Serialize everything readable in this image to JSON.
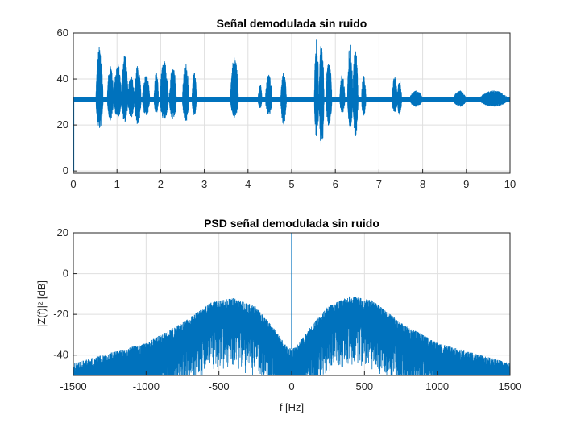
{
  "chart_data": [
    {
      "type": "line",
      "title": "Señal demodulada sin ruido",
      "xlabel": "",
      "ylabel": "",
      "xlim": [
        0,
        10
      ],
      "ylim": [
        -1,
        60
      ],
      "xticks": [
        0,
        1,
        2,
        3,
        4,
        5,
        6,
        7,
        8,
        9,
        10
      ],
      "yticks": [
        0,
        20,
        40,
        60
      ],
      "grid": true,
      "color": "#0072BD",
      "baseline": 31,
      "start_value": 0,
      "bursts": [
        {
          "t0": 0.52,
          "t1": 0.68,
          "max": 54.5,
          "min": 18
        },
        {
          "t0": 0.78,
          "t1": 0.92,
          "max": 47,
          "min": 22
        },
        {
          "t0": 0.93,
          "t1": 1.1,
          "max": 47,
          "min": 23
        },
        {
          "t0": 1.1,
          "t1": 1.25,
          "max": 52,
          "min": 21
        },
        {
          "t0": 1.25,
          "t1": 1.4,
          "max": 42,
          "min": 23
        },
        {
          "t0": 1.4,
          "t1": 1.55,
          "max": 46,
          "min": 20
        },
        {
          "t0": 1.58,
          "t1": 1.75,
          "max": 42,
          "min": 24
        },
        {
          "t0": 1.85,
          "t1": 1.95,
          "max": 43,
          "min": 25
        },
        {
          "t0": 1.98,
          "t1": 2.18,
          "max": 48,
          "min": 22
        },
        {
          "t0": 2.2,
          "t1": 2.36,
          "max": 46,
          "min": 22
        },
        {
          "t0": 2.5,
          "t1": 2.65,
          "max": 47,
          "min": 21
        },
        {
          "t0": 2.72,
          "t1": 2.82,
          "max": 43,
          "min": 24
        },
        {
          "t0": 3.6,
          "t1": 3.78,
          "max": 50,
          "min": 23
        },
        {
          "t0": 4.23,
          "t1": 4.32,
          "max": 38,
          "min": 27
        },
        {
          "t0": 4.4,
          "t1": 4.55,
          "max": 42,
          "min": 24
        },
        {
          "t0": 4.75,
          "t1": 4.88,
          "max": 43,
          "min": 20
        },
        {
          "t0": 5.52,
          "t1": 5.62,
          "max": 58,
          "min": 14
        },
        {
          "t0": 5.63,
          "t1": 5.74,
          "max": 57,
          "min": 9
        },
        {
          "t0": 5.78,
          "t1": 5.92,
          "max": 48,
          "min": 19
        },
        {
          "t0": 6.1,
          "t1": 6.22,
          "max": 42,
          "min": 25
        },
        {
          "t0": 6.28,
          "t1": 6.4,
          "max": 56,
          "min": 18
        },
        {
          "t0": 6.4,
          "t1": 6.52,
          "max": 54,
          "min": 15
        },
        {
          "t0": 6.6,
          "t1": 6.7,
          "max": 42,
          "min": 24
        },
        {
          "t0": 7.3,
          "t1": 7.42,
          "max": 41,
          "min": 25
        },
        {
          "t0": 7.42,
          "t1": 7.52,
          "max": 40,
          "min": 24
        },
        {
          "t0": 7.7,
          "t1": 8.0,
          "max": 35,
          "min": 28
        },
        {
          "t0": 8.7,
          "t1": 9.0,
          "max": 35,
          "min": 28
        },
        {
          "t0": 9.3,
          "t1": 9.95,
          "max": 35,
          "min": 28
        }
      ]
    },
    {
      "type": "line",
      "title": "PSD señal demodulada sin ruido",
      "xlabel": "f [Hz]",
      "ylabel": "|Z(f)|² [dB]",
      "xlim": [
        -1500,
        1500
      ],
      "ylim": [
        -50,
        20
      ],
      "xticks": [
        -1500,
        -1000,
        -500,
        0,
        500,
        1000,
        1500
      ],
      "yticks": [
        -40,
        -20,
        0,
        20
      ],
      "grid": true,
      "color": "#0072BD",
      "dc_spike_db": 20,
      "envelope_top": [
        {
          "f": -1500,
          "db": -44
        },
        {
          "f": -1300,
          "db": -40
        },
        {
          "f": -1000,
          "db": -34
        },
        {
          "f": -750,
          "db": -24
        },
        {
          "f": -550,
          "db": -14
        },
        {
          "f": -400,
          "db": -12
        },
        {
          "f": -250,
          "db": -16
        },
        {
          "f": -120,
          "db": -27
        },
        {
          "f": -30,
          "db": -36
        },
        {
          "f": 0,
          "db": -37
        },
        {
          "f": 30,
          "db": -36
        },
        {
          "f": 120,
          "db": -27
        },
        {
          "f": 250,
          "db": -16
        },
        {
          "f": 400,
          "db": -11
        },
        {
          "f": 550,
          "db": -13
        },
        {
          "f": 750,
          "db": -24
        },
        {
          "f": 1000,
          "db": -34
        },
        {
          "f": 1300,
          "db": -40
        },
        {
          "f": 1500,
          "db": -44
        }
      ]
    }
  ]
}
